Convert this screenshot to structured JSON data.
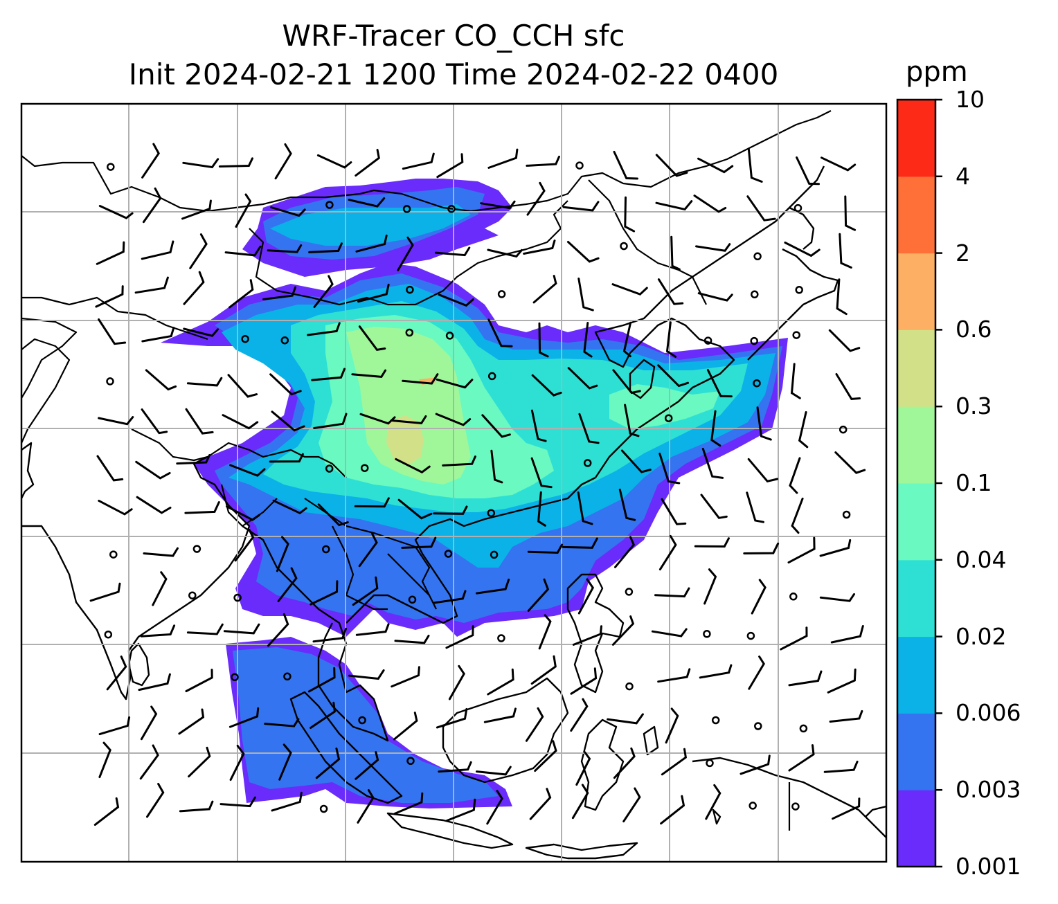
{
  "title": {
    "line1": "WRF-Tracer CO_CCH sfc",
    "line2": "Init 2024-02-21 1200 Time 2024-02-22 0400"
  },
  "colorbar": {
    "unit": "ppm",
    "levels": [
      "0.001",
      "0.003",
      "0.006",
      "0.02",
      "0.04",
      "0.1",
      "0.3",
      "0.6",
      "2",
      "4",
      "10"
    ],
    "colors": [
      "#6a2cfb",
      "#3474f0",
      "#0bb2e8",
      "#2ee0d4",
      "#6af9c0",
      "#9ff79a",
      "#d2e188",
      "#fdaf63",
      "#fe7038",
      "#fd2a17"
    ]
  },
  "map": {
    "gridlines": true,
    "features": [
      "coastlines",
      "country-borders",
      "wind-barbs",
      "tracer-concentration-fill"
    ]
  }
}
